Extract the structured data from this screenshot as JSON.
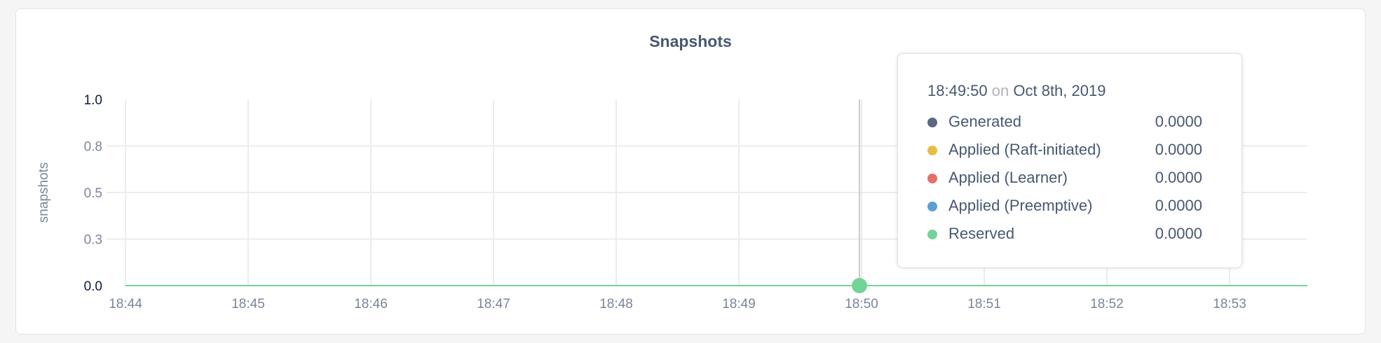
{
  "chart_data": {
    "type": "line",
    "title": "Snapshots",
    "ylabel": "snapshots",
    "xlabel": "",
    "ylim": [
      0,
      1.0
    ],
    "xlim": [
      "18:44",
      "18:53:38"
    ],
    "y_ticks": [
      "1.0",
      "0.8",
      "0.5",
      "0.3",
      "0.0"
    ],
    "y_tick_values": [
      1.0,
      0.75,
      0.5,
      0.25,
      0.0
    ],
    "x_ticks": [
      "18:44",
      "18:45",
      "18:46",
      "18:47",
      "18:48",
      "18:49",
      "18:50",
      "18:51",
      "18:52",
      "18:53"
    ],
    "grid": true,
    "series": [
      {
        "name": "Generated",
        "color": "#5b6783",
        "x": [
          "18:44",
          "18:53:38"
        ],
        "values": [
          0,
          0
        ]
      },
      {
        "name": "Applied (Raft-initiated)",
        "color": "#e9bd45",
        "x": [
          "18:44",
          "18:53:38"
        ],
        "values": [
          0,
          0
        ]
      },
      {
        "name": "Applied (Learner)",
        "color": "#e56f69",
        "x": [
          "18:44",
          "18:53:38"
        ],
        "values": [
          0,
          0
        ]
      },
      {
        "name": "Applied (Preemptive)",
        "color": "#5b9fd3",
        "x": [
          "18:44",
          "18:53:38"
        ],
        "values": [
          0,
          0
        ]
      },
      {
        "name": "Reserved",
        "color": "#72d497",
        "x": [
          "18:44",
          "18:53:38"
        ],
        "values": [
          0,
          0
        ]
      }
    ],
    "hover": {
      "x": "18:50",
      "series": "Reserved",
      "value": 0
    }
  },
  "tooltip": {
    "time": "18:49:50",
    "on": "on",
    "date": "Oct 8th, 2019",
    "rows": [
      {
        "label": "Generated",
        "value": "0.0000",
        "color": "#5b6783"
      },
      {
        "label": "Applied (Raft-initiated)",
        "value": "0.0000",
        "color": "#e9bd45"
      },
      {
        "label": "Applied (Learner)",
        "value": "0.0000",
        "color": "#e56f69"
      },
      {
        "label": "Applied (Preemptive)",
        "value": "0.0000",
        "color": "#5b9fd3"
      },
      {
        "label": "Reserved",
        "value": "0.0000",
        "color": "#72d497"
      }
    ]
  }
}
